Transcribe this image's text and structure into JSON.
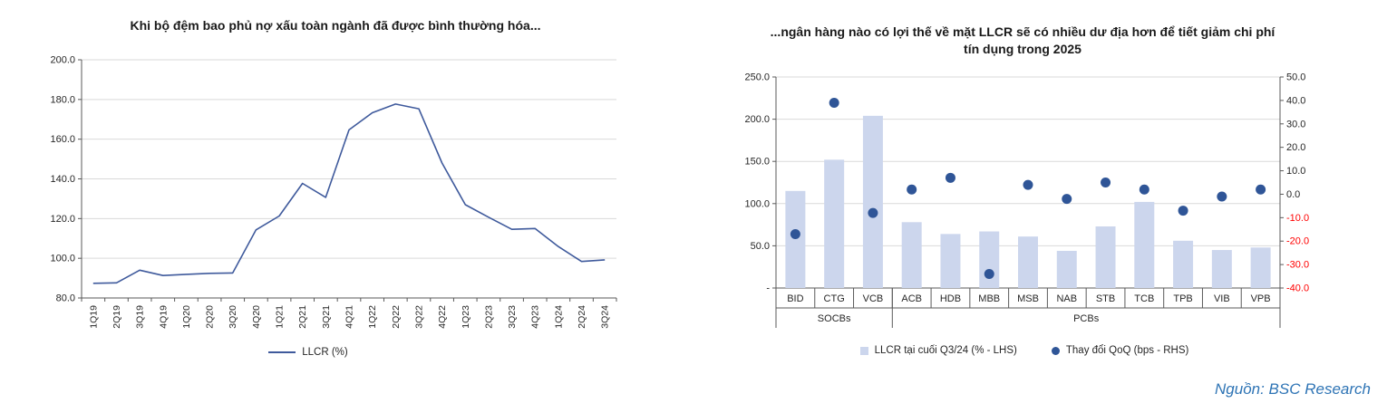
{
  "source": "Nguồn: BSC Research",
  "colors": {
    "line": "#3f5a9c",
    "bar_fill": "#ccd6ed",
    "dot_fill": "#2f5597",
    "grid": "#d9d9d9",
    "axis": "#595959",
    "text": "#262626",
    "negative_label": "#ff0000",
    "source_text": "#2e74b5"
  },
  "chart_data": [
    {
      "type": "line",
      "title": "Khi bộ đệm bao phủ nợ xấu toàn ngành đã được bình thường hóa...",
      "legend": [
        "LLCR (%)"
      ],
      "categories": [
        "1Q19",
        "2Q19",
        "3Q19",
        "4Q19",
        "1Q20",
        "2Q20",
        "3Q20",
        "4Q20",
        "1Q21",
        "2Q21",
        "3Q21",
        "4Q21",
        "1Q22",
        "2Q22",
        "3Q22",
        "4Q22",
        "1Q23",
        "2Q23",
        "3Q23",
        "4Q23",
        "1Q24",
        "2Q24",
        "3Q24"
      ],
      "values": [
        87.4,
        87.6,
        94.0,
        91.3,
        91.9,
        92.4,
        92.6,
        114.3,
        121.3,
        137.7,
        130.7,
        164.7,
        173.3,
        177.7,
        175.3,
        148.0,
        127.0,
        120.7,
        114.6,
        115.0,
        105.9,
        98.4,
        99.2
      ],
      "ylim": [
        80,
        200
      ],
      "ytick_labels": [
        "200.0",
        "180.0",
        "160.0",
        "140.0",
        "120.0",
        "100.0",
        "80.0"
      ],
      "grid": true,
      "legend_position": "bottom"
    },
    {
      "type": "bar+scatter",
      "title_lines": [
        "...ngân hàng nào có lợi thế về mặt LLCR sẽ có nhiều dư địa hơn để tiết giảm chi phí",
        "tín dụng trong 2025"
      ],
      "categories": [
        "BID",
        "CTG",
        "VCB",
        "ACB",
        "HDB",
        "MBB",
        "MSB",
        "NAB",
        "STB",
        "TCB",
        "TPB",
        "VIB",
        "VPB"
      ],
      "groups": [
        {
          "label": "SOCBs",
          "span": 3
        },
        {
          "label": "PCBs",
          "span": 10
        }
      ],
      "series": [
        {
          "name": "LLCR tại cuối Q3/24 (% - LHS)",
          "type": "bar",
          "axis": "left",
          "values": [
            115,
            152,
            204,
            78,
            64,
            67,
            61,
            44,
            73,
            102,
            56,
            45,
            48
          ]
        },
        {
          "name": "Thay đổi QoQ (bps - RHS)",
          "type": "scatter",
          "axis": "right",
          "values": [
            -17,
            39,
            -8,
            2,
            7,
            -34,
            4,
            -2,
            5,
            2,
            -7,
            -1,
            2
          ]
        }
      ],
      "left_ylim": [
        0,
        250
      ],
      "right_ylim": [
        -40,
        50
      ],
      "left_tick_labels": [
        "250.0",
        "200.0",
        "150.0",
        "100.0",
        "50.0",
        "-"
      ],
      "right_tick_labels": [
        "50.0",
        "40.0",
        "30.0",
        "20.0",
        "10.0",
        "0.0",
        "-10.0",
        "-20.0",
        "-30.0",
        "-40.0"
      ],
      "grid": true,
      "legend_position": "bottom"
    }
  ]
}
